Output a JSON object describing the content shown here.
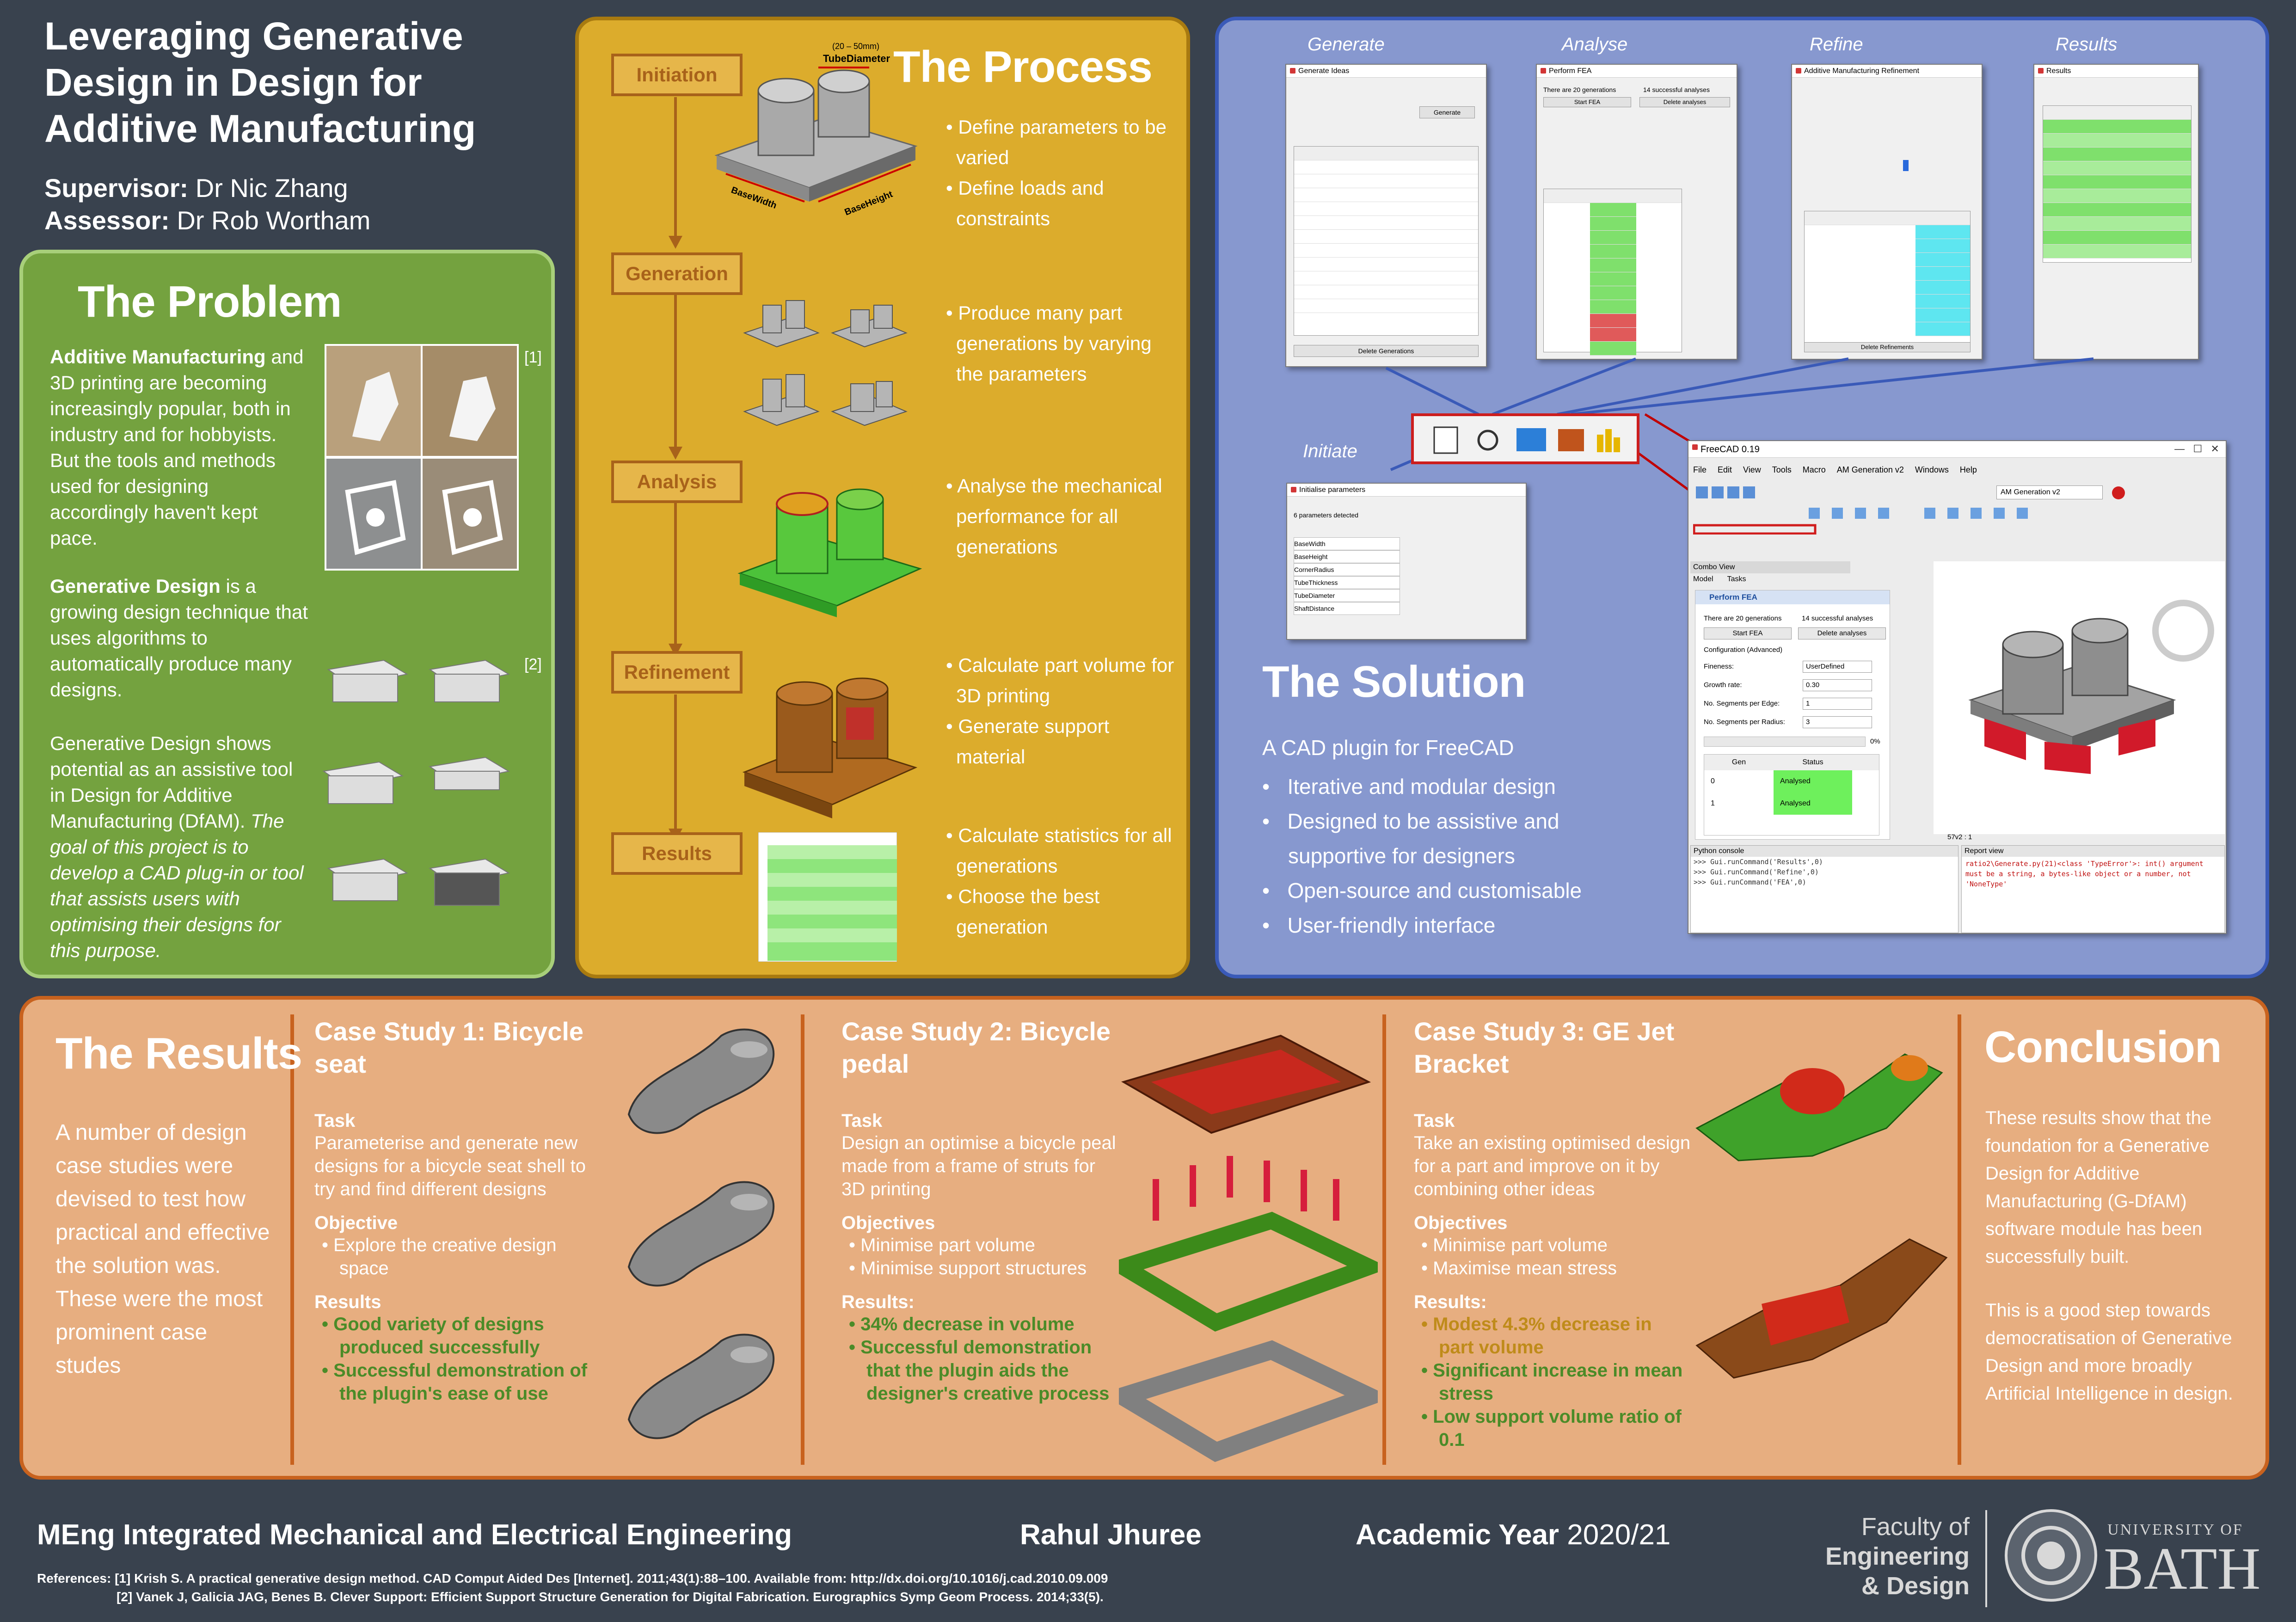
{
  "header": {
    "title": "Leveraging Generative Design in Design for Additive Manufacturing",
    "supervisor_label": "Supervisor:",
    "supervisor": "Dr Nic Zhang",
    "assessor_label": "Assessor:",
    "assessor": "Dr Rob Wortham"
  },
  "problem": {
    "heading": "The Problem",
    "p1_bold": "Additive Manufacturing",
    "p1": "and 3D printing are becoming increasingly popular, both in industry and for hobbyists. But the tools and methods used for designing accordingly haven't kept pace.",
    "p2_bold": "Generative Design",
    "p2": "is a growing design technique that uses algorithms to automatically produce many designs.",
    "p3": "Generative Design shows potential as an assistive tool in Design for Additive Manufacturing (DfAM).",
    "p3_italic": "The goal of this project is to develop a CAD plug-in or tool that assists users with optimising their designs for this purpose.",
    "ref1": "[1]",
    "ref2": "[2]"
  },
  "process": {
    "heading": "The Process",
    "stages": [
      "Initiation",
      "Generation",
      "Analysis",
      "Refinement",
      "Results"
    ],
    "dim_label": "(20 – 50mm)",
    "dim_name": "TubeDiameter",
    "base_width": "BaseWidth",
    "base_height": "BaseHeight",
    "initiation_bullets": [
      "Define parameters to be varied",
      "Define loads and constraints"
    ],
    "generation_bullets": [
      "Produce many part generations by varying the parameters"
    ],
    "analysis_bullets": [
      "Analyse the mechanical performance for all generations"
    ],
    "refinement_bullets": [
      "Calculate part volume for 3D printing",
      "Generate support material"
    ],
    "results_bullets": [
      "Calculate statistics for all generations",
      "Choose the best generation"
    ]
  },
  "solution": {
    "heading": "The Solution",
    "window_labels": [
      "Generate",
      "Analyse",
      "Refine",
      "Results",
      "Initiate"
    ],
    "subtitle": "A CAD plugin for FreeCAD",
    "bullets": [
      "Iterative and modular design",
      "Designed to be assistive and supportive for designers",
      "Open-source and customisable",
      "User-friendly interface"
    ],
    "win_generate_title": "Generate Ideas",
    "win_generate_btn": "Generate",
    "win_generate_delete": "Delete Generations",
    "win_analyse_title": "Perform FEA",
    "win_analyse_info": "There are 20 generations",
    "win_analyse_info2": "14 successful analyses",
    "win_analyse_start": "Start FEA",
    "win_analyse_delete": "Delete analyses",
    "win_refine_title": "Additive Manufacturing Refinement",
    "win_refine_delete": "Delete Refinements",
    "win_results_title": "Results",
    "win_initiate_title": "Initialise parameters",
    "win_initiate_info": "6 parameters detected",
    "initiate_params": [
      "BaseWidth",
      "BaseHeight",
      "CornerRadius",
      "TubeThickness",
      "TubeDiameter",
      "ShaftDistance"
    ],
    "freecad_title": "FreeCAD 0.19",
    "freecad_menus": [
      "File",
      "Edit",
      "View",
      "Tools",
      "Macro",
      "AM Generation v2",
      "Windows",
      "Help"
    ],
    "freecad_workbench": "AM Generation v2",
    "combo_view": "Combo View",
    "combo_tabs": [
      "Model",
      "Tasks"
    ],
    "fea_panel_title": "Perform FEA",
    "fea_info": "There are 20 generations",
    "fea_info2": "14 successful analyses",
    "fea_start": "Start FEA",
    "fea_delete": "Delete analyses",
    "fea_config": "Configuration (Advanced)",
    "fea_fields": [
      {
        "label": "Fineness:",
        "value": "UserDefined"
      },
      {
        "label": "Growth rate:",
        "value": "0.30"
      },
      {
        "label": "No. Segments per Edge:",
        "value": "1"
      },
      {
        "label": "No. Segments per Radius:",
        "value": "3"
      }
    ],
    "fea_progress": "0%",
    "fea_table_headers": [
      "Gen",
      "Status"
    ],
    "fea_table_rows": [
      [
        "0",
        "Analysed"
      ],
      [
        "1",
        "Analysed"
      ]
    ],
    "python_console": "Python console",
    "console_lines": [
      ">>> Gui.runCommand('Results',0)",
      ">>> Gui.runCommand('Refine',0)",
      ">>> Gui.runCommand('FEA',0)"
    ],
    "report_view": "Report view",
    "report_text": "ratio2\\Generate.py(21)<class 'TypeError'>: int() argument must be a string, a bytes-like object or a number, not 'NoneType'",
    "doc_tab": "57v2 : 1"
  },
  "results": {
    "heading": "The Results",
    "intro": "A number of design case studies were devised to test how practical and effective the solution was. These were the most prominent case studes",
    "cs1": {
      "title": "Case Study 1: Bicycle seat",
      "task_label": "Task",
      "task": "Parameterise and generate new designs for a bicycle seat shell to try and find different designs",
      "objective_label": "Objective",
      "objectives": [
        "Explore the creative design space"
      ],
      "results_label": "Results",
      "results": [
        "Good variety of designs produced successfully",
        "Successful demonstration of the plugin's ease of use"
      ]
    },
    "cs2": {
      "title": "Case Study 2: Bicycle pedal",
      "task_label": "Task",
      "task": "Design an optimise a bicycle peal made from a frame of struts for 3D printing",
      "objective_label": "Objectives",
      "objectives": [
        "Minimise part volume",
        "Minimise support structures"
      ],
      "results_label": "Results:",
      "results": [
        "34% decrease in volume",
        "Successful demonstration that the plugin aids the designer's creative process"
      ]
    },
    "cs3": {
      "title": "Case Study 3: GE Jet Bracket",
      "task_label": "Task",
      "task": "Take an existing optimised design for a part and improve on it by combining other ideas",
      "objective_label": "Objectives",
      "objectives": [
        "Minimise part volume",
        "Maximise mean stress"
      ],
      "results_label": "Results:",
      "results": [
        "Modest 4.3% decrease in part volume",
        "Significant increase in mean stress",
        "Low support volume ratio of 0.1"
      ]
    },
    "conclusion_heading": "Conclusion",
    "conclusion_p1": "These results show that the foundation for a Generative Design for Additive Manufacturing (G-DfAM) software module has been successfully built.",
    "conclusion_p2": "This is a good step towards democratisation of Generative Design and more broadly Artificial Intelligence in design."
  },
  "footer": {
    "course": "MEng Integrated Mechanical and Electrical Engineering",
    "author": "Rahul Jhuree",
    "year_label": "Academic Year",
    "year": "2020/21",
    "faculty_line1": "Faculty of",
    "faculty_line2": "Engineering",
    "faculty_line3": "& Design",
    "university_small": "UNIVERSITY OF",
    "university_big": "BATH",
    "refs_label": "References:",
    "ref1": "[1] Krish S. A practical generative design method. CAD Comput Aided Des [Internet]. 2011;43(1):88–100. Available from: http://dx.doi.org/10.1016/j.cad.2010.09.009",
    "ref2": "[2] Vanek J, Galicia JAG, Benes B. Clever Support: Efficient Support Structure Generation for Digital Fabrication. Eurographics Symp Geom Process. 2014;33(5)."
  },
  "colors": {
    "background": "#39424e",
    "problem": "#74a23f",
    "process": "#dcac2c",
    "solution": "#8798cf",
    "results": "#e7ae80",
    "accent_orange": "#c8621e",
    "green_result": "#4b8b28"
  }
}
